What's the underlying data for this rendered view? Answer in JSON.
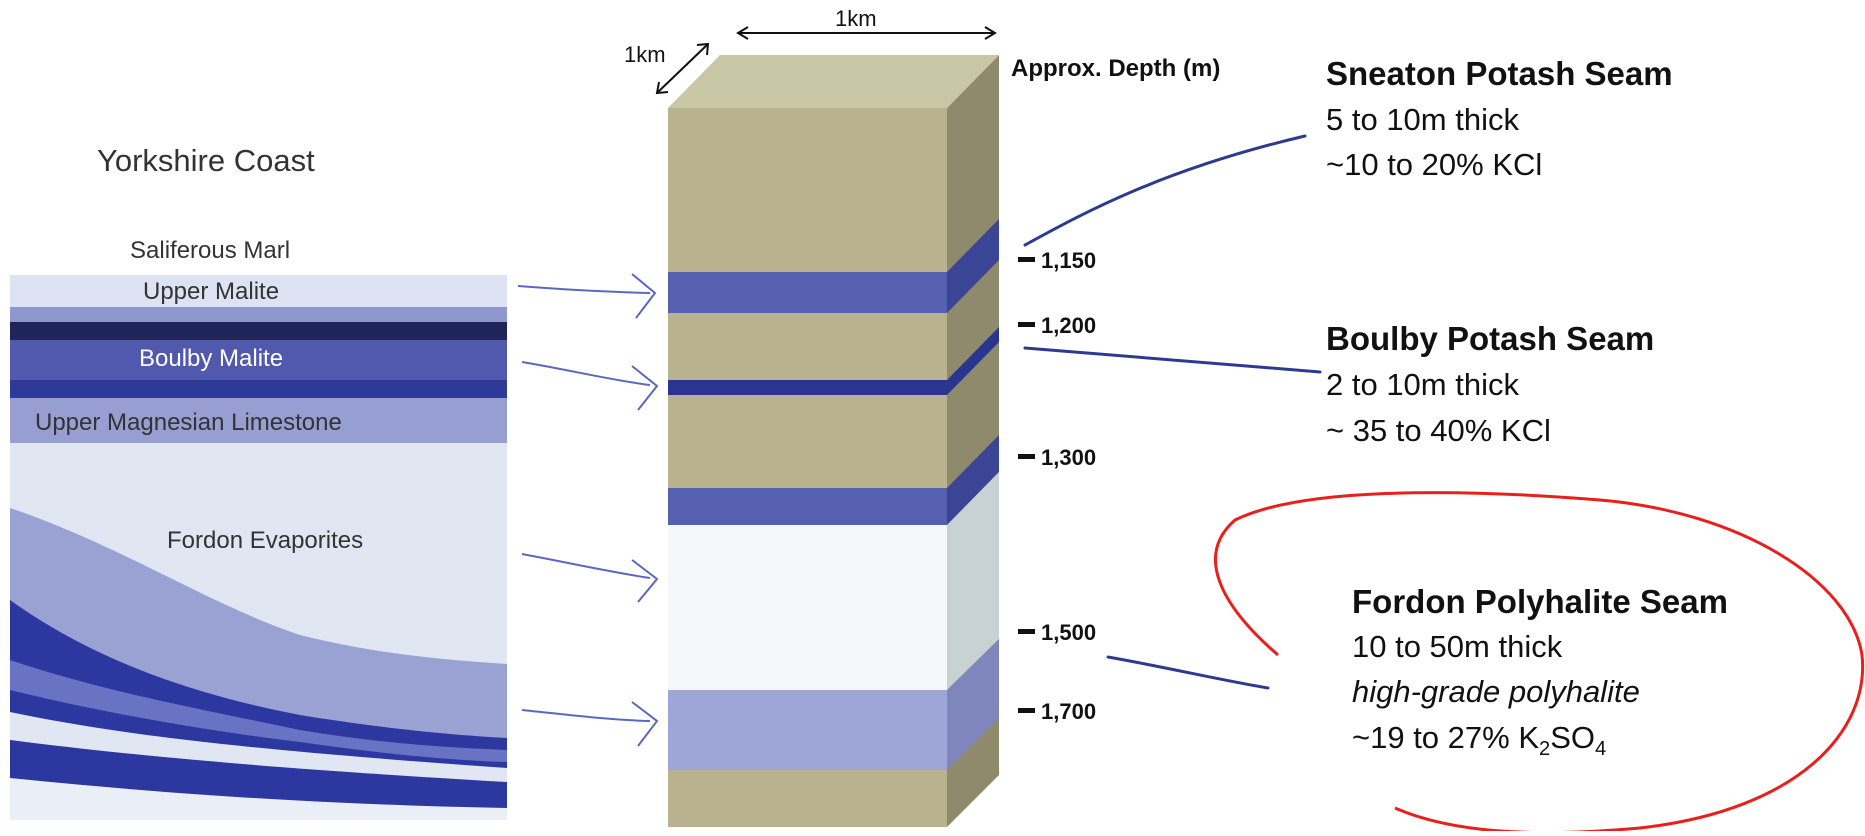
{
  "dimensions": {
    "width_label": "1km",
    "depth_label": "1km"
  },
  "region_title": "Yorkshire Coast",
  "left_layers": [
    "Saliferous Marl",
    "Upper Malite",
    "Boulby Malite",
    "Upper Magnesian Limestone",
    "Fordon Evaporites"
  ],
  "depth_axis": {
    "title": "Approx. Depth (m)",
    "ticks": [
      "1,150",
      "1,200",
      "1,300",
      "1,500",
      "1,700"
    ]
  },
  "seams": [
    {
      "title": "Sneaton Potash Seam",
      "thickness": "5 to 10m thick",
      "grade": "~10 to 20% KCl"
    },
    {
      "title": "Boulby Potash Seam",
      "thickness": "2 to 10m thick",
      "grade": "~ 35 to 40% KCl"
    },
    {
      "title": "Fordon Polyhalite Seam",
      "thickness": "10 to 50m thick",
      "quality": "high-grade polyhalite",
      "grade_prefix": "~19 to 27% K",
      "grade_sub1": "2",
      "grade_mid": "SO",
      "grade_sub2": "4"
    }
  ],
  "colors": {
    "sand": "#b8b38e",
    "sand_top": "#c9c6a5",
    "sand_side": "#8e8a6b",
    "potash": "#5660b0",
    "potash_dark": "#2a3590",
    "potash_light": "#9ea6d8",
    "evaporite": "#f4f8fa",
    "highlight_ellipse": "#e8201c",
    "pointer": "#2c3a8f"
  }
}
